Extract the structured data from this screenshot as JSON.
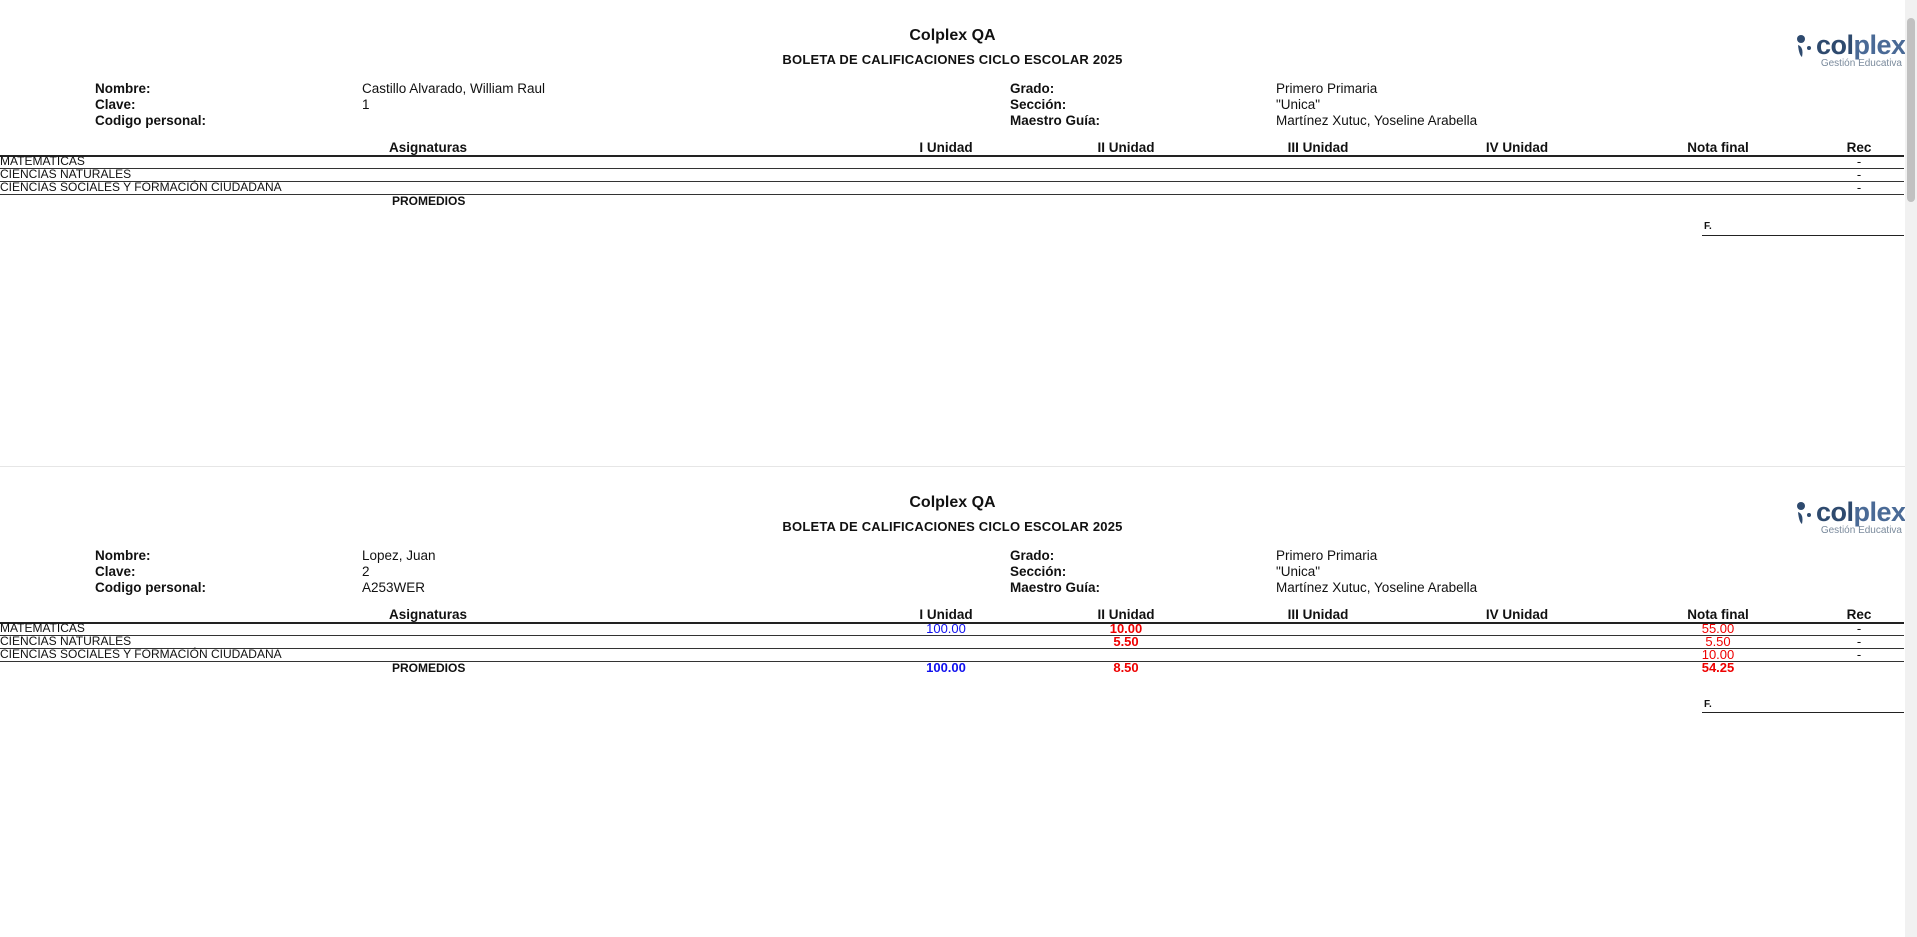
{
  "reports": [
    {
      "school": "Colplex QA",
      "title": "BOLETA DE CALIFICACIONES CICLO ESCOLAR 2025",
      "logo": {
        "word_a": "col",
        "word_b": "plex",
        "tagline": "Gestión Educativa"
      },
      "info": {
        "nombre_label": "Nombre:",
        "nombre": "Castillo Alvarado, William Raul",
        "clave_label": "Clave:",
        "clave": "1",
        "codigo_label": "Codigo personal:",
        "codigo": "",
        "grado_label": "Grado:",
        "grado": "Primero Primaria",
        "seccion_label": "Sección:",
        "seccion": "\"Unica\"",
        "maestro_label": "Maestro Guía:",
        "maestro": "Martínez Xutuc, Yoseline Arabella"
      },
      "headers": {
        "asignaturas": "Asignaturas",
        "u1": "I Unidad",
        "u2": "II Unidad",
        "u3": "III Unidad",
        "u4": "IV Unidad",
        "final": "Nota final",
        "rec": "Rec"
      },
      "rows": [
        {
          "subject": "MATEMATICAS",
          "u1": "",
          "u2": "",
          "u3": "",
          "u4": "",
          "final": "",
          "rec": "-"
        },
        {
          "subject": "CIENCIAS NATURALES",
          "u1": "",
          "u2": "",
          "u3": "",
          "u4": "",
          "final": "",
          "rec": "-"
        },
        {
          "subject": "CIENCIAS SOCIALES Y FORMACIÓN CIUDADANA",
          "u1": "",
          "u2": "",
          "u3": "",
          "u4": "",
          "final": "",
          "rec": "-"
        }
      ],
      "promedios": {
        "label": "PROMEDIOS",
        "u1": "",
        "u2": "",
        "u3": "",
        "u4": "",
        "final": ""
      },
      "signature_label": "F."
    },
    {
      "school": "Colplex QA",
      "title": "BOLETA DE CALIFICACIONES CICLO ESCOLAR 2025",
      "logo": {
        "word_a": "col",
        "word_b": "plex",
        "tagline": "Gestión Educativa"
      },
      "info": {
        "nombre_label": "Nombre:",
        "nombre": "Lopez, Juan",
        "clave_label": "Clave:",
        "clave": "2",
        "codigo_label": "Codigo personal:",
        "codigo": "A253WER",
        "grado_label": "Grado:",
        "grado": "Primero Primaria",
        "seccion_label": "Sección:",
        "seccion": "\"Unica\"",
        "maestro_label": "Maestro Guía:",
        "maestro": "Martínez Xutuc, Yoseline Arabella"
      },
      "headers": {
        "asignaturas": "Asignaturas",
        "u1": "I Unidad",
        "u2": "II Unidad",
        "u3": "III Unidad",
        "u4": "IV Unidad",
        "final": "Nota final",
        "rec": "Rec"
      },
      "rows": [
        {
          "subject": "MATEMATICAS",
          "u1": "100.00",
          "u2": "10.00",
          "u3": "",
          "u4": "",
          "final": "55.00",
          "rec": "-"
        },
        {
          "subject": "CIENCIAS NATURALES",
          "u1": "",
          "u2": "5.50",
          "u3": "",
          "u4": "",
          "final": "5.50",
          "rec": "-"
        },
        {
          "subject": "CIENCIAS SOCIALES Y FORMACIÓN CIUDADANA",
          "u1": "",
          "u2": "",
          "u3": "",
          "u4": "",
          "final": "10.00",
          "rec": "-"
        }
      ],
      "promedios": {
        "label": "PROMEDIOS",
        "u1": "100.00",
        "u2": "8.50",
        "u3": "",
        "u4": "",
        "final": "54.25"
      },
      "signature_label": "F."
    }
  ],
  "colors": {
    "pass_blue": "#1010ee",
    "fail_red": "#ee0000",
    "brand_dark": "#2e4a6e"
  }
}
